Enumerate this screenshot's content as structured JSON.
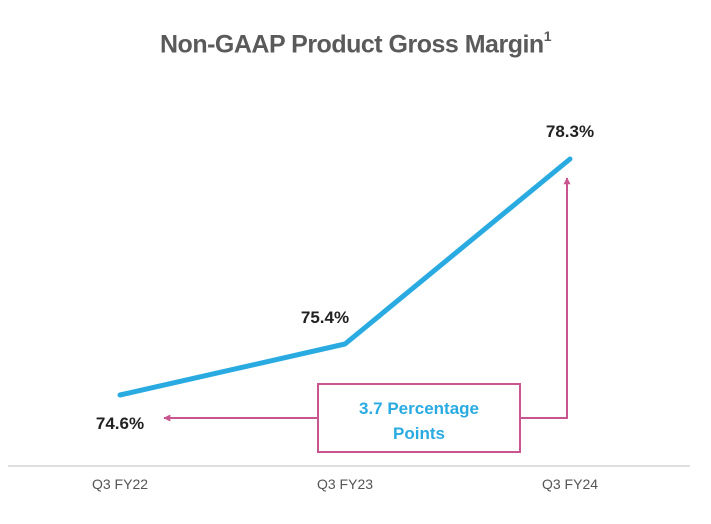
{
  "chart_data": {
    "type": "line",
    "title": "Non-GAAP Product Gross Margin",
    "title_footnote": "1",
    "categories": [
      "Q3 FY22",
      "Q3 FY23",
      "Q3 FY24"
    ],
    "values": [
      74.6,
      75.4,
      78.3
    ],
    "data_labels": [
      "74.6%",
      "75.4%",
      "78.3%"
    ],
    "ylim": [
      74.0,
      78.5
    ],
    "grid": false,
    "annotation": {
      "lines": [
        "3.7 Percentage",
        "Points"
      ]
    },
    "colors": {
      "line": "#29abe2",
      "annotation": "#c8558f",
      "axis": "#bfbfbf"
    }
  }
}
